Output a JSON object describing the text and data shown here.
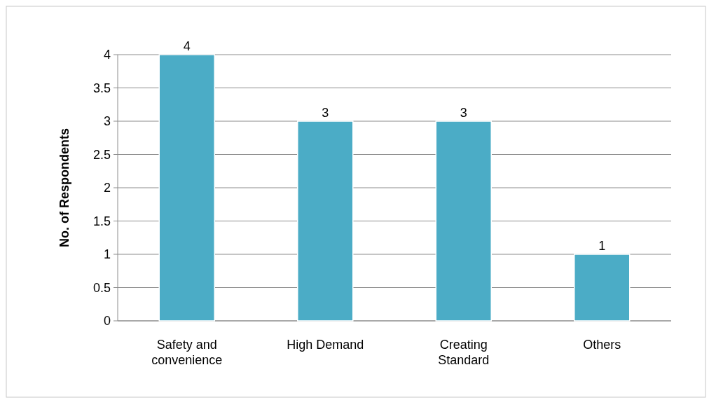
{
  "chart_data": {
    "type": "bar",
    "ylabel": "No. of Respondents",
    "categories": [
      "Safety and convenience",
      "High Demand",
      "Creating Standard",
      "Others"
    ],
    "values": [
      4,
      3,
      3,
      1
    ],
    "color": "#4bacc6",
    "ylim": [
      0,
      4
    ],
    "yticks": [
      0,
      0.5,
      1,
      1.5,
      2,
      2.5,
      3,
      3.5,
      4
    ],
    "grid": "y",
    "data_labels": true
  }
}
